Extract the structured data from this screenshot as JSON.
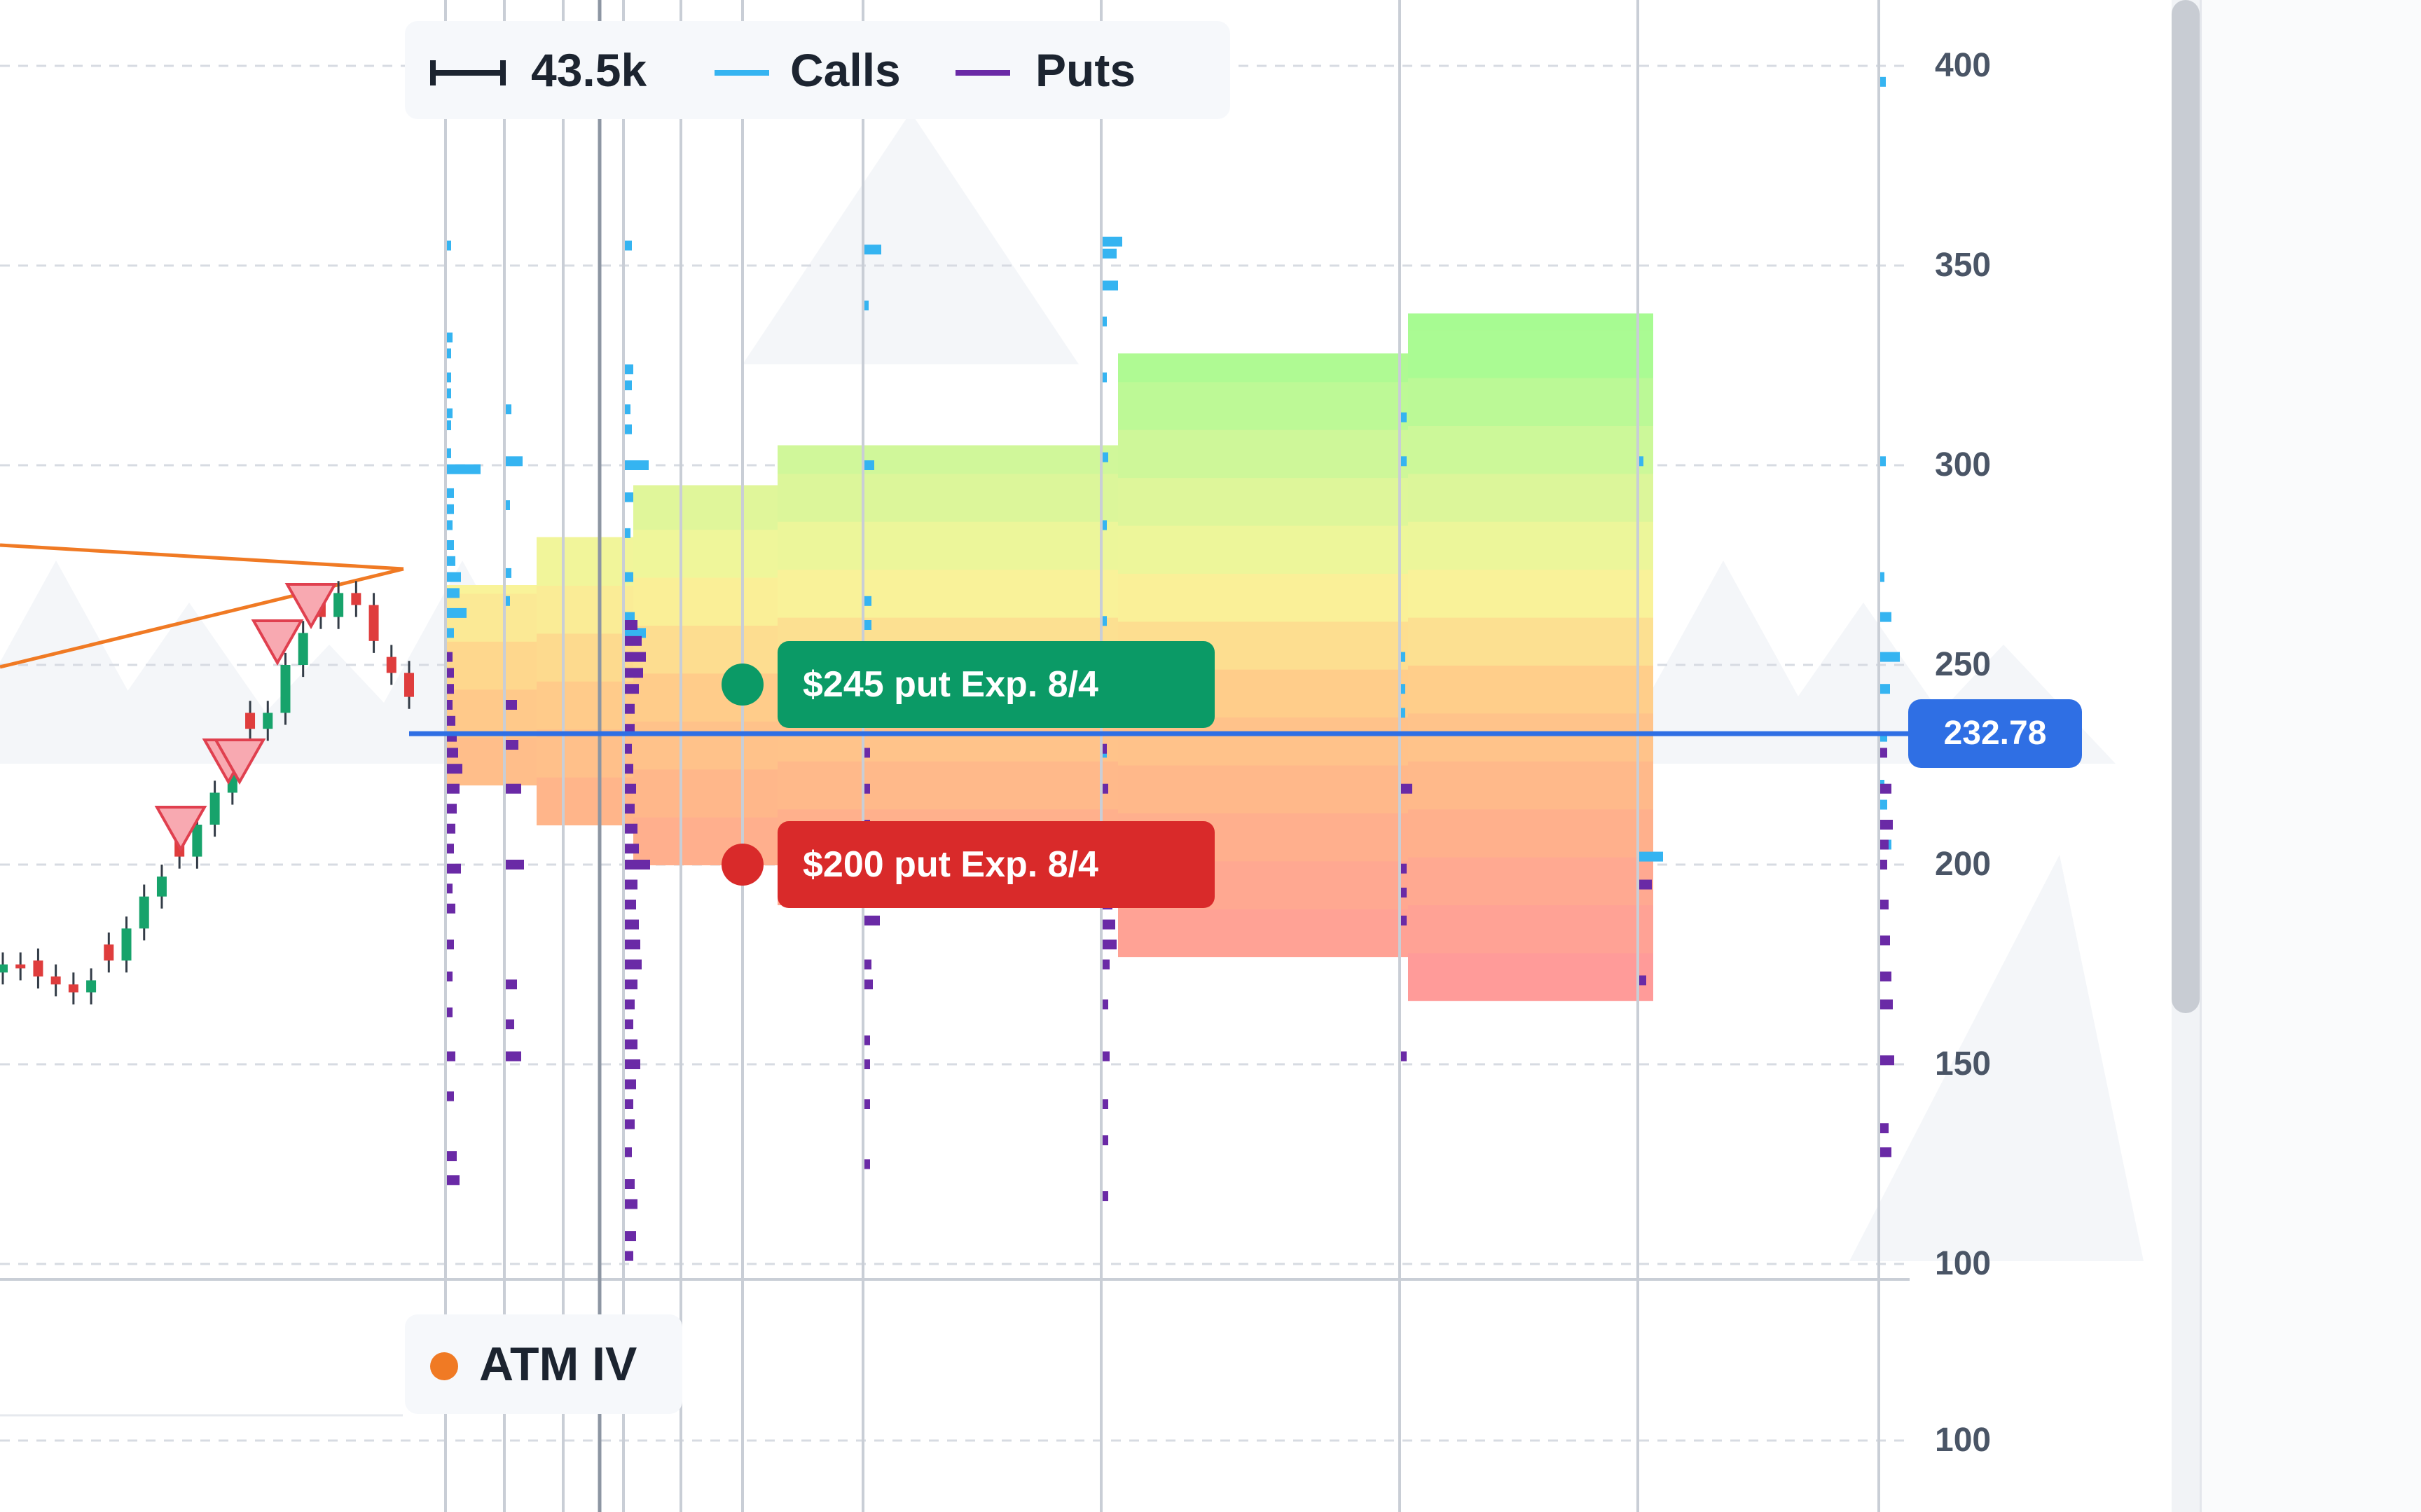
{
  "legend": {
    "range_value": "43.5k",
    "calls_label": "Calls",
    "puts_label": "Puts"
  },
  "indicator_legend": {
    "label": "ATM IV"
  },
  "colors": {
    "calls": "#35b4f1",
    "puts": "#6a2aa6",
    "price_line": "#2f6fe4",
    "trend_line": "#f07a24",
    "green_annotation": "#0b9a66",
    "red_annotation": "#d92a2a",
    "atm_iv_dot": "#f07a24"
  },
  "annotations": [
    {
      "label": "$245 put Exp. 8/4",
      "price": 245,
      "color": "#0b9a66"
    },
    {
      "label": "$200 put Exp. 8/4",
      "price": 200,
      "color": "#d92a2a"
    }
  ],
  "current_price": {
    "label": "232.78",
    "value": 232.78
  },
  "chart_data": {
    "type": "line",
    "title": "",
    "price_axis": {
      "ylim": [
        100,
        400
      ],
      "ticks": [
        400,
        350,
        300,
        250,
        200,
        150,
        100
      ]
    },
    "lower_pane_axis": {
      "ticks": [
        100
      ]
    },
    "legend_placement": "top-left",
    "grid": true,
    "series": [
      {
        "name": "Calls",
        "color": "#35b4f1"
      },
      {
        "name": "Puts",
        "color": "#6a2aa6"
      }
    ],
    "price_candles": [
      175,
      174,
      172,
      170,
      168,
      171,
      176,
      184,
      192,
      197,
      202,
      210,
      218,
      226,
      234,
      238,
      250,
      258,
      262,
      268,
      265,
      256,
      248,
      242
    ],
    "projection_zones": [
      {
        "upper": 270,
        "lower": 220
      },
      {
        "upper": 282,
        "lower": 210
      },
      {
        "upper": 295,
        "lower": 200
      },
      {
        "upper": 305,
        "lower": 190
      },
      {
        "upper": 328,
        "lower": 177
      },
      {
        "upper": 338,
        "lower": 166
      }
    ],
    "current_price": 232.78
  }
}
